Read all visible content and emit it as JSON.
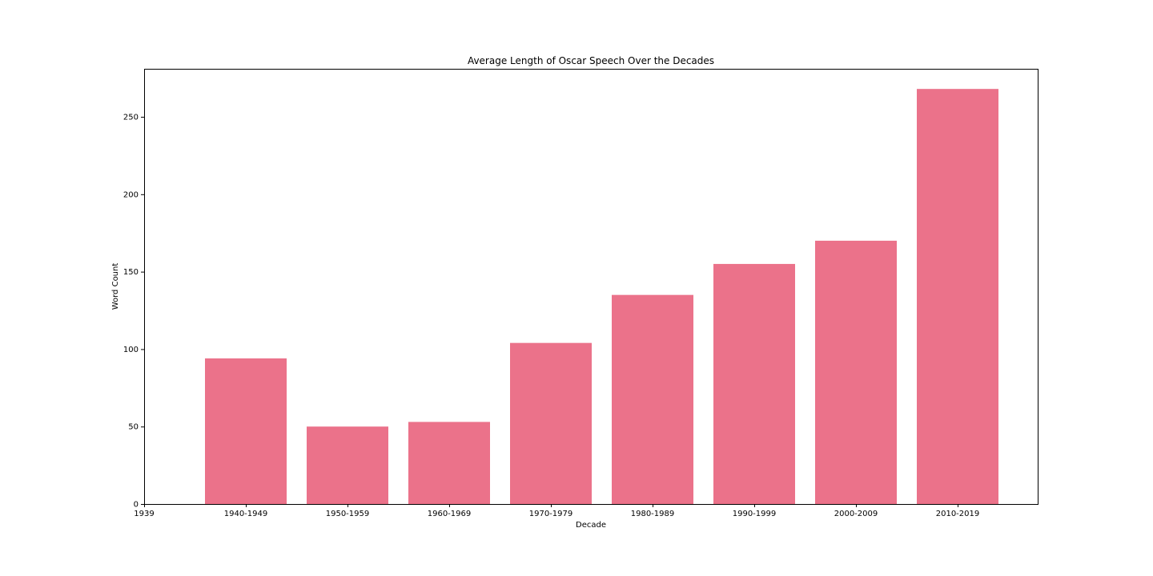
{
  "chart_data": {
    "type": "bar",
    "title": "Average Length of Oscar Speech Over the Decades",
    "xlabel": "Decade",
    "ylabel": "Word Count",
    "categories": [
      "1940-1949",
      "1950-1959",
      "1960-1969",
      "1970-1979",
      "1980-1989",
      "1990-1999",
      "2000-2009",
      "2010-2019"
    ],
    "values": [
      94,
      50,
      53,
      104,
      135,
      155,
      170,
      268
    ],
    "extra_x_tick_label": "1939",
    "y_ticks": [
      0,
      50,
      100,
      150,
      200,
      250
    ],
    "ylim": [
      0,
      281
    ],
    "grid": false,
    "legend": "none",
    "bar_color": "#eb728a"
  }
}
